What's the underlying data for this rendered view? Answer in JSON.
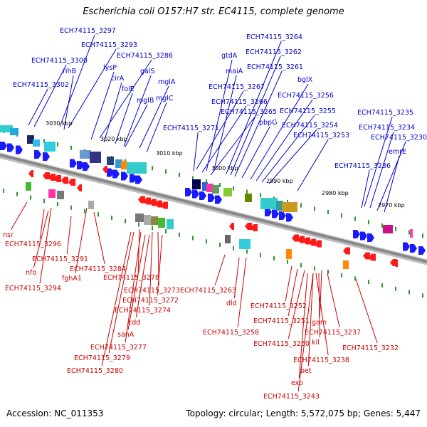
{
  "title": "Escherichia coli O157:H7 str. EC4115, complete genome",
  "footer": {
    "accession": "Accession: NC_011353",
    "topology": "Topology: circular; Length: 5,572,075 bp; Genes: 5,447"
  },
  "colors": {
    "forward_label": "#0000cc",
    "reverse_label": "#cc0000",
    "forward_gene": "#1a1aff",
    "reverse_gene": "#ff1a1a",
    "backbone": "#888888",
    "tick": "#2a9a2a"
  },
  "ticks": [
    "3030 kbp",
    "3020 kbp",
    "3010 kbp",
    "3000 kbp",
    "2990 kbp",
    "2980 kbp",
    "2970 kbp"
  ],
  "forward_labels": [
    "ECH74115_3297",
    "ECH74115_3293",
    "ECH74115_3300",
    "ECH74115_3286",
    "rihB",
    "lysP",
    "cirA",
    "galS",
    "ECH74115_3302",
    "folE",
    "mglA",
    "mglB",
    "mglC",
    "ECH74115_3264",
    "ECH74115_3262",
    "gtdA",
    "ECH74115_3261",
    "maiA",
    "bglX",
    "ECH74115_3267",
    "ECH74115_3256",
    "ECH74115_3266",
    "ECH74115_3265",
    "ECH74115_3255",
    "pbpG",
    "ECH74115_3271",
    "ECH74115_3254",
    "ECH74115_3253",
    "ECH74115_3235",
    "ECH74115_3234",
    "ECH74115_3230",
    "emrE",
    "ECH74115_3236"
  ],
  "reverse_labels": [
    "nsr",
    "ECH74115_3296",
    "ECH74115_3291",
    "nfo",
    "fghA1",
    "ECH74115_3284",
    "ECH74115_3294",
    "ECH74115_3278",
    "ECH74115_3273",
    "ECH74115_3263",
    "ECH74115_3272",
    "ECH74115_3274",
    "dld",
    "ECH74115_3252",
    "cdd",
    "sanA",
    "ECH74115_3251",
    "gam",
    "ECH74115_3258",
    "ECH74115_3237",
    "kil",
    "ECH74115_3250",
    "ECH74115_3232",
    "ECH74115_3277",
    "ECH74115_3279",
    "ECH74115_3238",
    "bet",
    "ECH74115_3280",
    "exo",
    "ECH74115_3243"
  ]
}
